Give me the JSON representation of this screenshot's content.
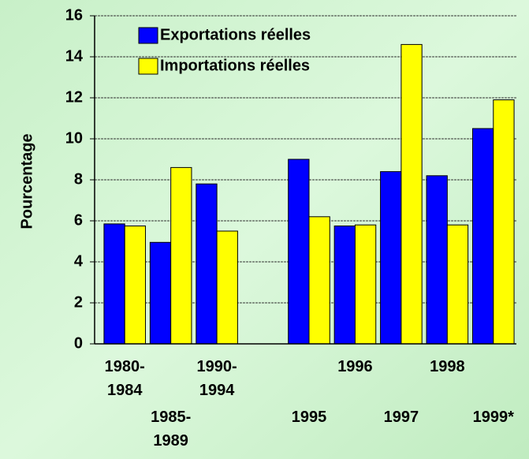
{
  "chart_data": {
    "type": "bar",
    "y_label": "Pourcentage",
    "categories": [
      "1980-\n1984",
      "1985-\n1989",
      "1990-\n1994",
      null,
      "1995",
      "1996",
      "1997",
      "1998",
      "1999*"
    ],
    "series": [
      {
        "name": "Exportations réelles",
        "color": "#0000ff",
        "values": [
          5.85,
          4.95,
          7.8,
          null,
          9.0,
          5.75,
          8.4,
          8.2,
          10.5
        ]
      },
      {
        "name": "Importations réelles",
        "color": "#ffff00",
        "values": [
          5.75,
          8.6,
          5.5,
          null,
          6.2,
          5.8,
          14.6,
          5.8,
          11.9
        ]
      }
    ],
    "ylim": [
      0,
      16
    ],
    "yticks": [
      0,
      2,
      4,
      6,
      8,
      10,
      12,
      14,
      16
    ],
    "grid": true
  }
}
